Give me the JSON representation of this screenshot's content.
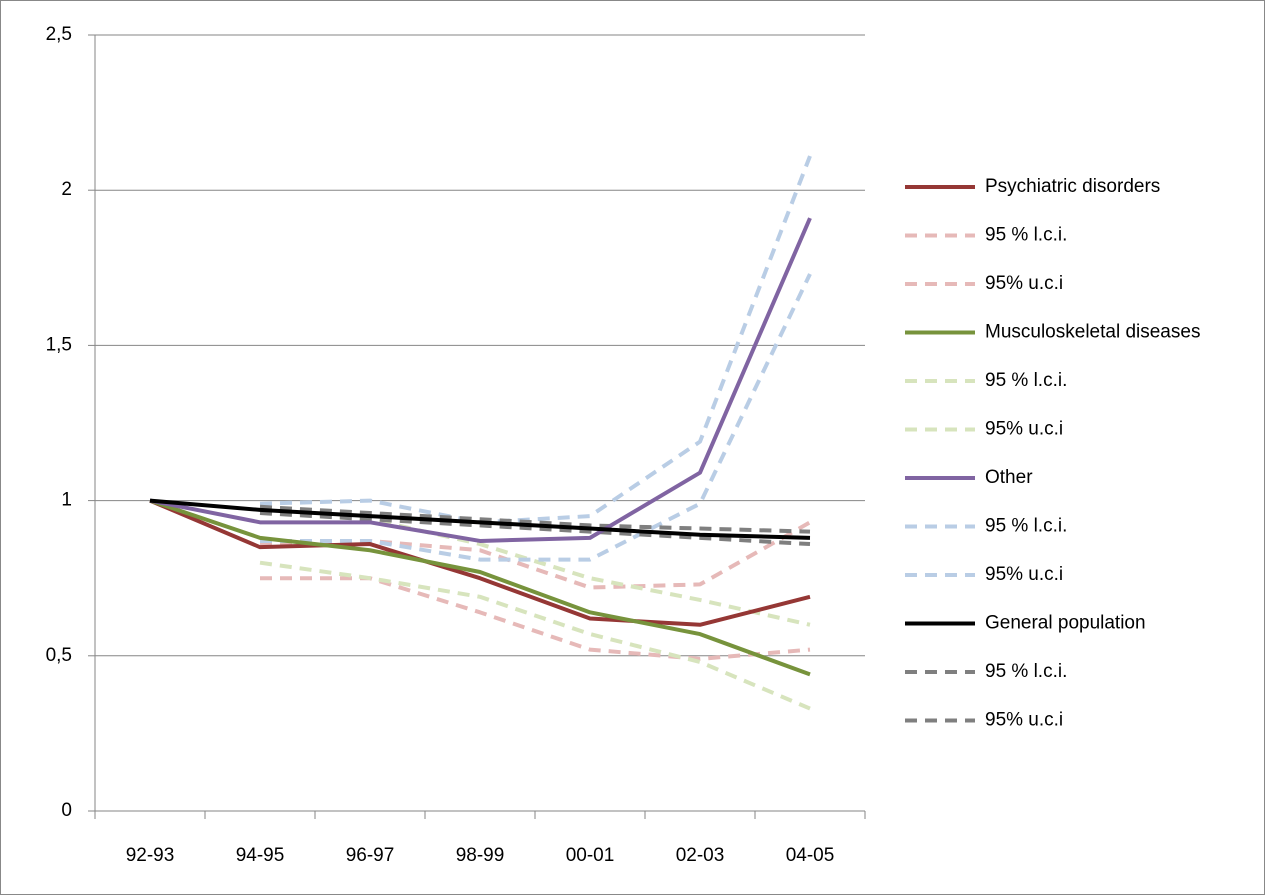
{
  "chart_data": {
    "type": "line",
    "categories": [
      "92-93",
      "94-95",
      "96-97",
      "98-99",
      "00-01",
      "02-03",
      "04-05"
    ],
    "ylim": [
      0,
      2.5
    ],
    "yticks": [
      0,
      {
        "value": 0.5,
        "label": "0,5"
      },
      1,
      {
        "value": 1.5,
        "label": "1,5"
      },
      2,
      {
        "value": 2.5,
        "label": "2,5"
      }
    ],
    "grid": true,
    "legend": "right",
    "series": [
      {
        "name": "Psychiatric disorders",
        "color": "#953735",
        "dashed": false,
        "values": [
          1.0,
          0.85,
          0.86,
          0.75,
          0.62,
          0.6,
          0.69
        ]
      },
      {
        "name": "95 % l.c.i.",
        "color": "#e6b9b8",
        "dashed": true,
        "values": [
          null,
          0.75,
          0.75,
          0.64,
          0.52,
          0.49,
          0.52
        ]
      },
      {
        "name": "95% u.c.i",
        "color": "#e6b9b8",
        "dashed": true,
        "values": [
          null,
          0.86,
          0.87,
          0.84,
          0.72,
          0.73,
          0.93
        ]
      },
      {
        "name": "Musculoskeletal diseases",
        "color": "#77933c",
        "dashed": false,
        "values": [
          1.0,
          0.88,
          0.84,
          0.77,
          0.64,
          0.57,
          0.44
        ]
      },
      {
        "name": "95 % l.c.i.",
        "color": "#d7e4bd",
        "dashed": true,
        "values": [
          null,
          0.8,
          0.75,
          0.69,
          0.57,
          0.48,
          0.33
        ]
      },
      {
        "name": "95% u.c.i",
        "color": "#d7e4bd",
        "dashed": true,
        "values": [
          null,
          0.97,
          0.94,
          0.86,
          0.75,
          0.68,
          0.6
        ]
      },
      {
        "name": "Other",
        "color": "#8064a2",
        "dashed": false,
        "values": [
          1.0,
          0.93,
          0.93,
          0.87,
          0.88,
          1.09,
          1.91
        ]
      },
      {
        "name": "95 % l.c.i.",
        "color": "#b9cde5",
        "dashed": true,
        "values": [
          null,
          0.87,
          0.87,
          0.81,
          0.81,
          0.99,
          1.73
        ]
      },
      {
        "name": "95% u.c.i",
        "color": "#b9cde5",
        "dashed": true,
        "values": [
          null,
          0.99,
          1.0,
          0.93,
          0.95,
          1.19,
          2.11
        ]
      },
      {
        "name": "General population",
        "color": "#000000",
        "dashed": false,
        "values": [
          1.0,
          0.97,
          0.95,
          0.93,
          0.91,
          0.89,
          0.88
        ]
      },
      {
        "name": "95 % l.c.i.",
        "color": "#7f7f7f",
        "dashed": true,
        "values": [
          null,
          0.96,
          0.94,
          0.92,
          0.9,
          0.88,
          0.86
        ]
      },
      {
        "name": "95% u.c.i",
        "color": "#7f7f7f",
        "dashed": true,
        "values": [
          null,
          0.98,
          0.96,
          0.94,
          0.92,
          0.91,
          0.9
        ]
      }
    ]
  }
}
